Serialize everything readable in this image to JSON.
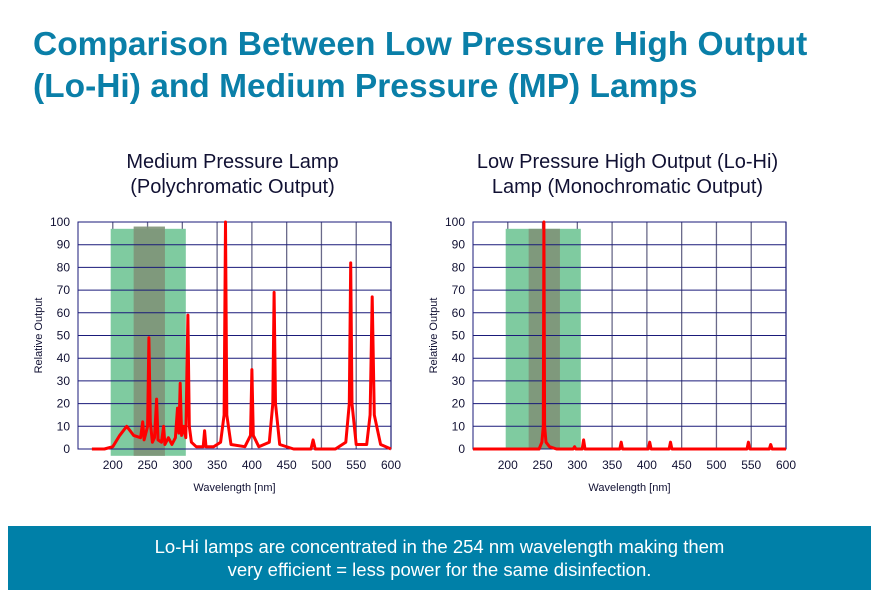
{
  "title": {
    "line1": "Comparison Between Low Pressure High Output",
    "line2": "(Lo-Hi) and Medium Pressure (MP) Lamps"
  },
  "footer": {
    "line1": "Lo-Hi lamps are concentrated in the 254 nm wavelength making them",
    "line2": "very efficient = less power for the same disinfection."
  },
  "colors": {
    "title": "#0a7fa8",
    "footer_bg": "#0080a8",
    "spectrum": "#ff0000",
    "germicidal_band": "#7fcba0",
    "peak_band": "#7f9478",
    "grid": "#1a1a7a"
  },
  "chart_data": [
    {
      "type": "line",
      "title": "Medium Pressure Lamp\n(Polychromatic Output)",
      "xlabel": "Wavelength [nm]",
      "ylabel": "Relative Output",
      "xlim": [
        150,
        600
      ],
      "ylim": [
        0,
        100
      ],
      "xticks": [
        200,
        250,
        300,
        350,
        400,
        450,
        500,
        550,
        600
      ],
      "yticks": [
        0,
        10,
        20,
        30,
        40,
        50,
        60,
        70,
        80,
        90,
        100
      ],
      "grid": true,
      "bands": [
        {
          "x": [
            197,
            305
          ],
          "y": [
            -3,
            97
          ],
          "color": "#7fcba0"
        },
        {
          "x": [
            230,
            275
          ],
          "y": [
            -3,
            98
          ],
          "color": "#7f9478"
        }
      ],
      "series": [
        {
          "color": "#ff0000",
          "points": [
            [
              170,
              0
            ],
            [
              180,
              0
            ],
            [
              188,
              0
            ],
            [
              200,
              1
            ],
            [
              210,
              6
            ],
            [
              220,
              10
            ],
            [
              230,
              6
            ],
            [
              240,
              5
            ],
            [
              243,
              12
            ],
            [
              245,
              4
            ],
            [
              250,
              10
            ],
            [
              252,
              49
            ],
            [
              254,
              12
            ],
            [
              257,
              3
            ],
            [
              260,
              5
            ],
            [
              263,
              22
            ],
            [
              265,
              4
            ],
            [
              270,
              3
            ],
            [
              273,
              10
            ],
            [
              275,
              2
            ],
            [
              280,
              5
            ],
            [
              285,
              2
            ],
            [
              290,
              5
            ],
            [
              293,
              18
            ],
            [
              295,
              7
            ],
            [
              297,
              29
            ],
            [
              299,
              6
            ],
            [
              302,
              10
            ],
            [
              305,
              5
            ],
            [
              308,
              59
            ],
            [
              310,
              10
            ],
            [
              313,
              3
            ],
            [
              320,
              1
            ],
            [
              330,
              1
            ],
            [
              332,
              8
            ],
            [
              334,
              1
            ],
            [
              345,
              1
            ],
            [
              355,
              3
            ],
            [
              360,
              15
            ],
            [
              362,
              100
            ],
            [
              364,
              15
            ],
            [
              370,
              2
            ],
            [
              390,
              1
            ],
            [
              398,
              6
            ],
            [
              400,
              35
            ],
            [
              402,
              6
            ],
            [
              410,
              1
            ],
            [
              425,
              3
            ],
            [
              430,
              20
            ],
            [
              432,
              69
            ],
            [
              434,
              20
            ],
            [
              440,
              2
            ],
            [
              460,
              0
            ],
            [
              485,
              0
            ],
            [
              488,
              4
            ],
            [
              491,
              0
            ],
            [
              520,
              0
            ],
            [
              535,
              3
            ],
            [
              540,
              20
            ],
            [
              542,
              82
            ],
            [
              544,
              20
            ],
            [
              550,
              2
            ],
            [
              565,
              2
            ],
            [
              570,
              15
            ],
            [
              573,
              67
            ],
            [
              576,
              15
            ],
            [
              585,
              2
            ],
            [
              600,
              0
            ]
          ]
        }
      ]
    },
    {
      "type": "line",
      "title": "Low Pressure High Output (Lo-Hi)\nLamp (Monochromatic Output)",
      "xlabel": "Wavelength [nm]",
      "ylabel": "Relative Output",
      "xlim": [
        150,
        600
      ],
      "ylim": [
        0,
        100
      ],
      "xticks": [
        200,
        250,
        300,
        350,
        400,
        450,
        500,
        550,
        600
      ],
      "yticks": [
        0,
        10,
        20,
        30,
        40,
        50,
        60,
        70,
        80,
        90,
        100
      ],
      "grid": true,
      "bands": [
        {
          "x": [
            197,
            305
          ],
          "y": [
            0,
            97
          ],
          "color": "#7fcba0"
        },
        {
          "x": [
            230,
            275
          ],
          "y": [
            0,
            97
          ],
          "color": "#7f9478"
        }
      ],
      "series": [
        {
          "color": "#ff0000",
          "points": [
            [
              150,
              0
            ],
            [
              245,
              0
            ],
            [
              249,
              3
            ],
            [
              251,
              10
            ],
            [
              252,
              100
            ],
            [
              253,
              10
            ],
            [
              255,
              3
            ],
            [
              260,
              1
            ],
            [
              270,
              0
            ],
            [
              294,
              0
            ],
            [
              296,
              1
            ],
            [
              298,
              0
            ],
            [
              307,
              0
            ],
            [
              309,
              4
            ],
            [
              311,
              0
            ],
            [
              361,
              0
            ],
            [
              363,
              3
            ],
            [
              365,
              0
            ],
            [
              402,
              0
            ],
            [
              404,
              3
            ],
            [
              406,
              0
            ],
            [
              432,
              0
            ],
            [
              434,
              3
            ],
            [
              436,
              0
            ],
            [
              544,
              0
            ],
            [
              546,
              3
            ],
            [
              548,
              0
            ],
            [
              576,
              0
            ],
            [
              578,
              2
            ],
            [
              580,
              0
            ],
            [
              600,
              0
            ]
          ]
        }
      ]
    }
  ]
}
